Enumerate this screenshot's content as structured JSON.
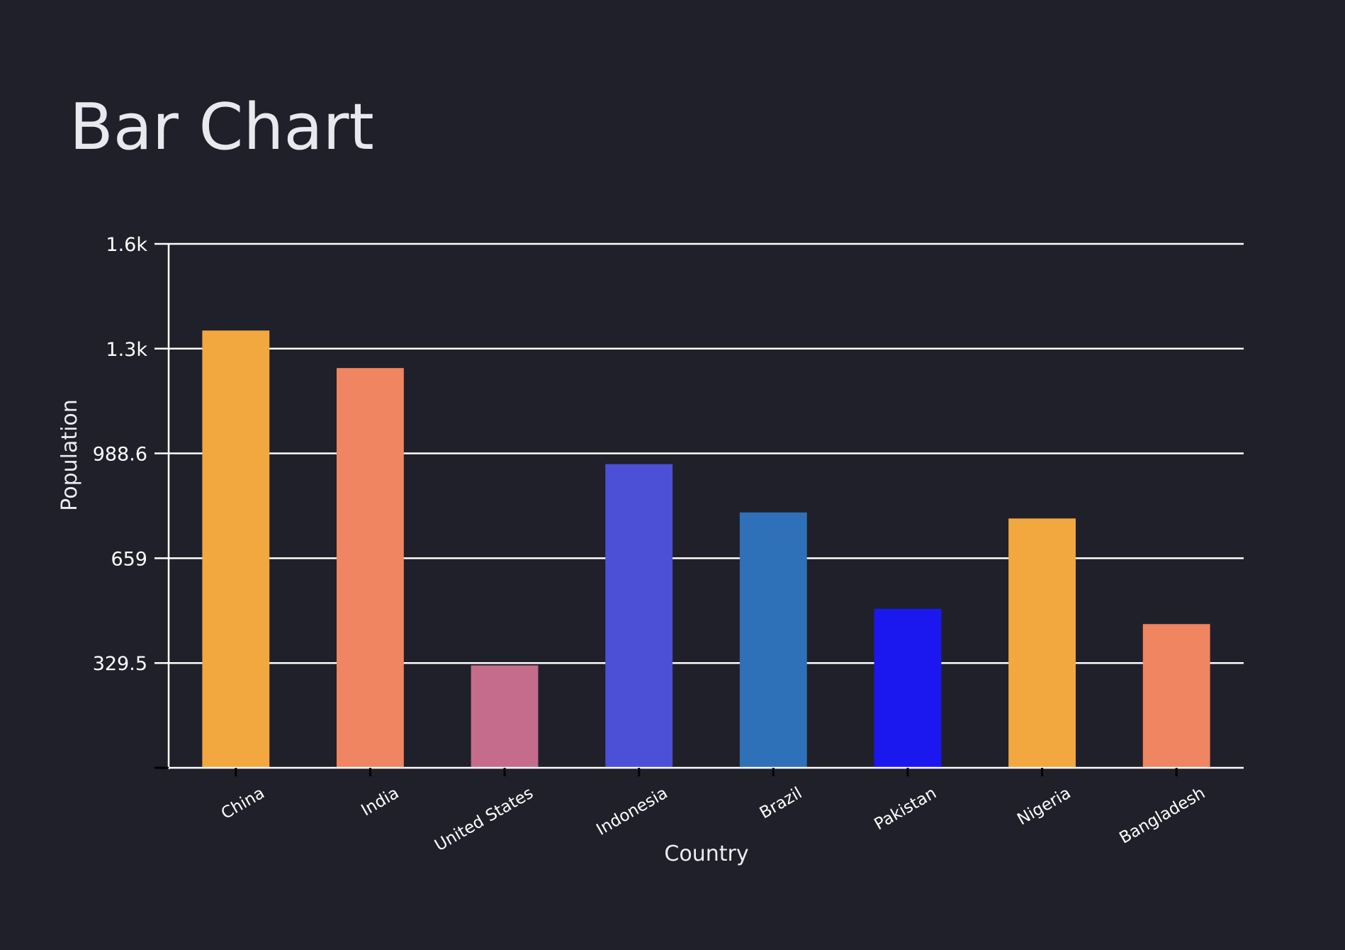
{
  "chart_data": {
    "type": "bar",
    "title": "Bar Chart",
    "xlabel": "Country",
    "ylabel": "Population",
    "categories": [
      "China",
      "India",
      "United States",
      "Indonesia",
      "Brazil",
      "Pakistan",
      "Nigeria",
      "Bangladesh"
    ],
    "values": [
      1375,
      1257,
      322,
      955,
      803,
      500,
      784,
      452
    ],
    "colors": [
      "#f2a73f",
      "#ef8561",
      "#c56b8b",
      "#4b50d6",
      "#2e71b8",
      "#1b18ef",
      "#f2a73f",
      "#ef8561"
    ],
    "ylim": [
      0,
      1647.5
    ],
    "yticks": [
      329.5,
      659,
      988.6,
      1318,
      1647.5
    ],
    "ytick_labels": [
      "329.5",
      "659",
      "988.6",
      "1.3k",
      "1.6k"
    ],
    "grid": true,
    "legend": "none",
    "theme": {
      "background": "#20202a",
      "grid_color": "#ffffff",
      "axis_color": "#ffffff"
    }
  }
}
